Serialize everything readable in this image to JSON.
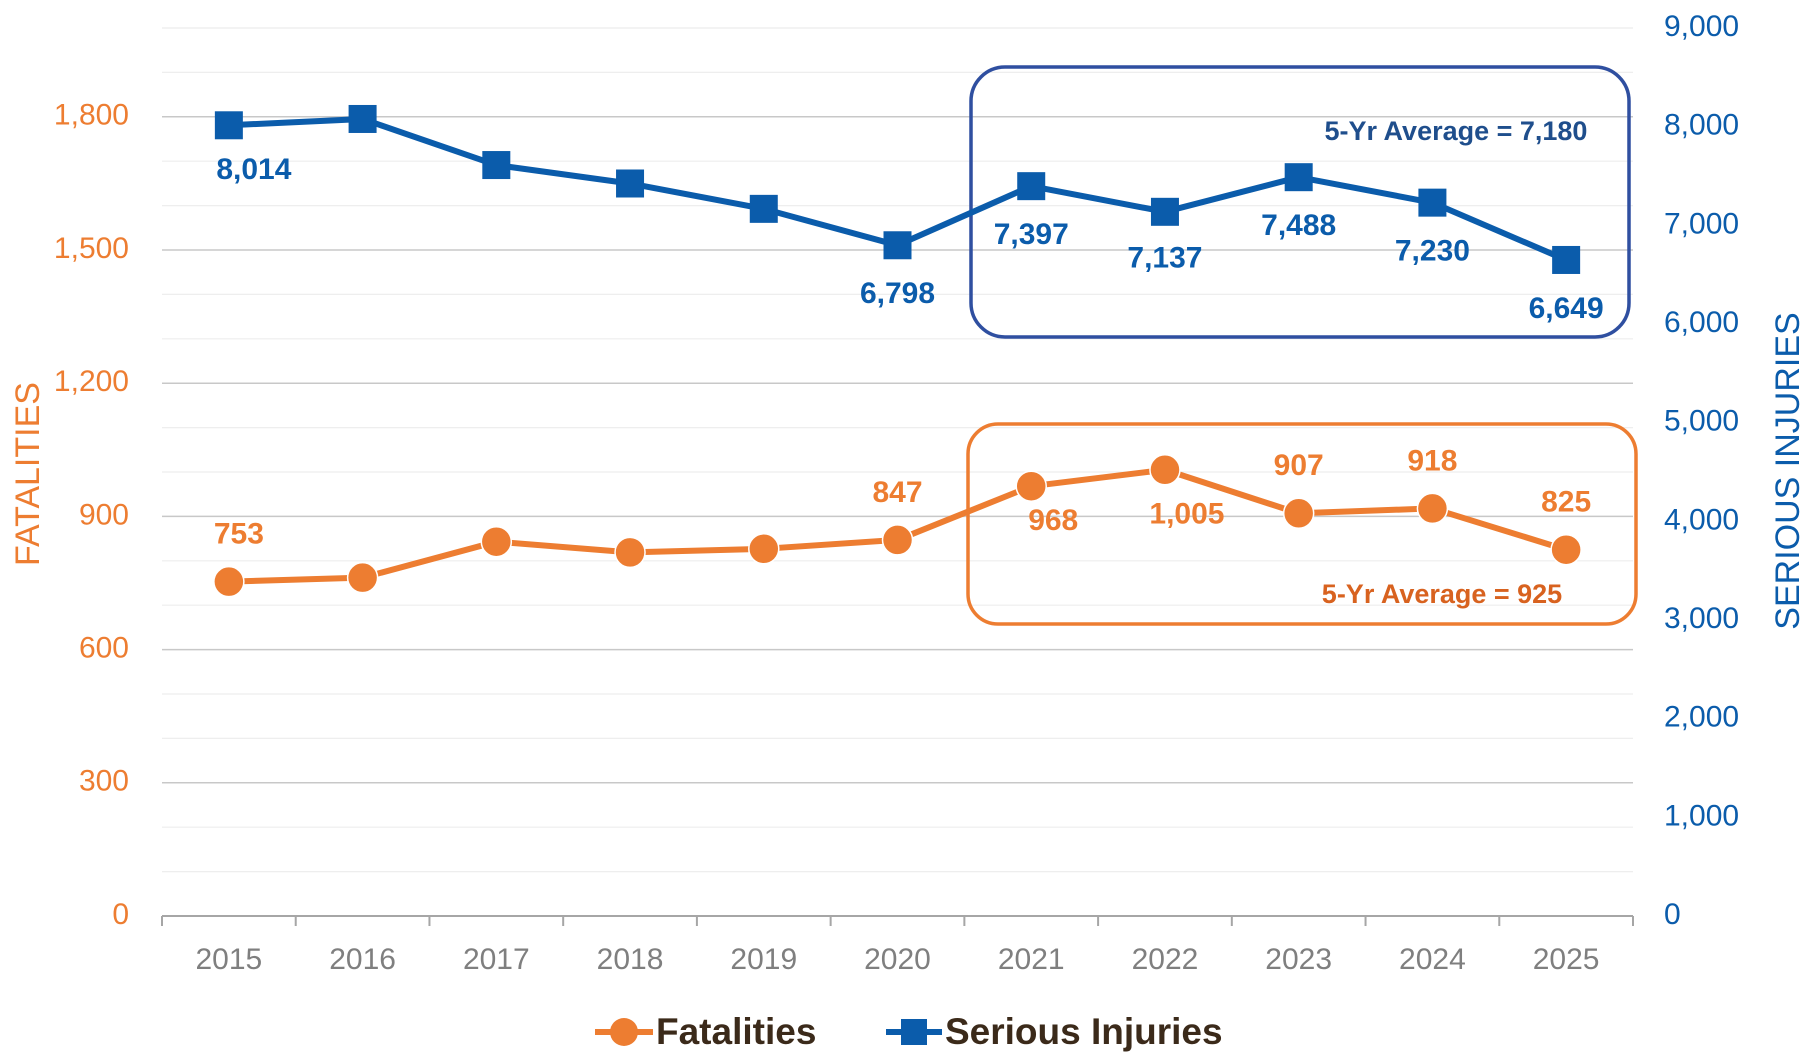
{
  "chart_data": {
    "type": "line",
    "categories": [
      "2015",
      "2016",
      "2017",
      "2018",
      "2019",
      "2020",
      "2021",
      "2022",
      "2023",
      "2024",
      "2025"
    ],
    "series": [
      {
        "name": "Fatalities",
        "color": "#ed7d31",
        "axis": "y",
        "values": [
          753,
          762,
          843,
          819,
          827,
          847,
          968,
          1005,
          907,
          918,
          825
        ],
        "value_labels": [
          "753",
          null,
          null,
          null,
          null,
          "847",
          "968",
          "1,005",
          "907",
          "918",
          "825"
        ]
      },
      {
        "name": "Serious Injuries",
        "color": "#0b5cab",
        "axis": "y2",
        "values": [
          8014,
          8078,
          7611,
          7424,
          7167,
          6798,
          7397,
          7137,
          7488,
          7230,
          6649
        ],
        "value_labels": [
          "8,014",
          null,
          null,
          null,
          null,
          "6,798",
          "7,397",
          "7,137",
          "7,488",
          "7,230",
          "6,649"
        ]
      }
    ],
    "ylabel": "FATALITIES",
    "y2label": "SERIOUS INJURIES",
    "ylim": [
      0,
      2000
    ],
    "yticks": [
      0,
      300,
      600,
      900,
      {
        "value": 1200,
        "label": "1,200"
      },
      {
        "value": 1500,
        "label": "1,500"
      },
      {
        "value": 1800,
        "label": "1,800"
      }
    ],
    "y2lim": [
      0,
      9000
    ],
    "y2ticks": [
      0,
      {
        "value": 1000,
        "label": "1,000"
      },
      {
        "value": 2000,
        "label": "2,000"
      },
      {
        "value": 3000,
        "label": "3,000"
      },
      {
        "value": 4000,
        "label": "4,000"
      },
      {
        "value": 5000,
        "label": "5,000"
      },
      {
        "value": 6000,
        "label": "6,000"
      },
      {
        "value": 7000,
        "label": "7,000"
      },
      {
        "value": 8000,
        "label": "8,000"
      },
      {
        "value": 9000,
        "label": "9,000"
      }
    ],
    "annotations": [
      "5-Yr Average = 7,180",
      "5-Yr Average = 925"
    ],
    "grid": true,
    "legend": "bottom"
  }
}
